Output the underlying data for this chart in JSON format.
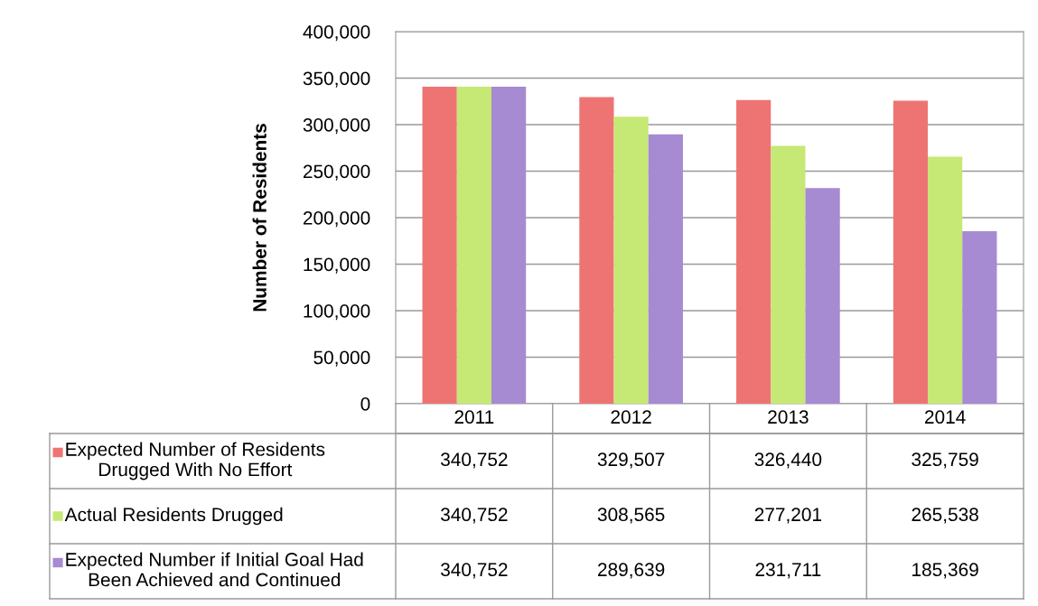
{
  "chart_data": {
    "type": "bar",
    "ylabel": "Number of Residents",
    "categories": [
      "2011",
      "2012",
      "2013",
      "2014"
    ],
    "series": [
      {
        "name": "Expected Number of Residents\nDrugged With No Effort",
        "color": "#ee7474",
        "values": [
          340752,
          329507,
          326440,
          325759
        ],
        "value_labels": [
          "340,752",
          "329,507",
          "326,440",
          "325,759"
        ]
      },
      {
        "name": "Actual Residents Drugged",
        "color": "#c6e874",
        "values": [
          340752,
          308565,
          277201,
          265538
        ],
        "value_labels": [
          "340,752",
          "308,565",
          "277,201",
          "265,538"
        ]
      },
      {
        "name": "Expected Number if Initial Goal Had\nBeen Achieved and Continued",
        "color": "#a68ad2",
        "values": [
          340752,
          289639,
          231711,
          185369
        ],
        "value_labels": [
          "340,752",
          "289,639",
          "231,711",
          "185,369"
        ]
      }
    ],
    "ylim": [
      0,
      400000
    ],
    "yticks": [
      0,
      {
        "value": 50000,
        "label": "50,000"
      },
      {
        "value": 100000,
        "label": "100,000"
      },
      {
        "value": 150000,
        "label": "150,000"
      },
      {
        "value": 200000,
        "label": "200,000"
      },
      {
        "value": 250000,
        "label": "250,000"
      },
      {
        "value": 300000,
        "label": "300,000"
      },
      {
        "value": 350000,
        "label": "350,000"
      },
      {
        "value": 400000,
        "label": "400,000"
      }
    ],
    "grid": "y",
    "legend": "bottom"
  }
}
